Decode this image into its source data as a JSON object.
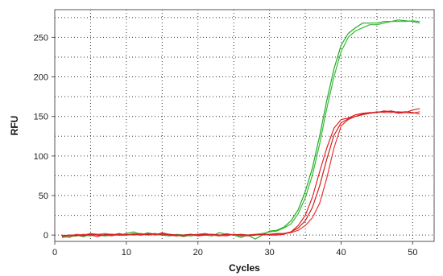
{
  "chart_data": {
    "type": "line",
    "title": "",
    "xlabel": "Cycles",
    "ylabel": "RFU",
    "xlim": [
      0,
      53
    ],
    "ylim": [
      -8,
      285
    ],
    "xticks": [
      0,
      10,
      20,
      30,
      40,
      50
    ],
    "yticks": [
      0,
      50,
      100,
      150,
      200,
      250
    ],
    "grid": true,
    "grid_style": "dotted",
    "legend": "none",
    "series": [
      {
        "color": "#22aa22",
        "points": [
          [
            1,
            -1
          ],
          [
            2,
            -3
          ],
          [
            3,
            0
          ],
          [
            4,
            -2
          ],
          [
            5,
            1
          ],
          [
            6,
            0
          ],
          [
            7,
            -1
          ],
          [
            8,
            0
          ],
          [
            9,
            0
          ],
          [
            10,
            2
          ],
          [
            11,
            4
          ],
          [
            12,
            1
          ],
          [
            13,
            2
          ],
          [
            14,
            0
          ],
          [
            15,
            1
          ],
          [
            16,
            -1
          ],
          [
            17,
            0
          ],
          [
            18,
            -2
          ],
          [
            19,
            0
          ],
          [
            20,
            1
          ],
          [
            21,
            0
          ],
          [
            22,
            -1
          ],
          [
            23,
            3
          ],
          [
            24,
            1
          ],
          [
            25,
            0
          ],
          [
            26,
            -3
          ],
          [
            27,
            0
          ],
          [
            28,
            -5
          ],
          [
            29,
            0
          ],
          [
            30,
            5
          ],
          [
            31,
            6
          ],
          [
            32,
            10
          ],
          [
            33,
            18
          ],
          [
            34,
            32
          ],
          [
            35,
            55
          ],
          [
            36,
            85
          ],
          [
            37,
            125
          ],
          [
            38,
            170
          ],
          [
            39,
            210
          ],
          [
            40,
            240
          ],
          [
            41,
            255
          ],
          [
            42,
            262
          ],
          [
            43,
            268
          ],
          [
            44,
            268
          ],
          [
            45,
            268
          ],
          [
            46,
            270
          ],
          [
            47,
            270
          ],
          [
            48,
            272
          ],
          [
            49,
            271
          ],
          [
            50,
            270
          ],
          [
            51,
            268
          ]
        ]
      },
      {
        "color": "#33bb33",
        "points": [
          [
            1,
            -3
          ],
          [
            2,
            -2
          ],
          [
            3,
            -1
          ],
          [
            4,
            0
          ],
          [
            5,
            -1
          ],
          [
            6,
            1
          ],
          [
            7,
            2
          ],
          [
            8,
            1
          ],
          [
            9,
            0
          ],
          [
            10,
            0
          ],
          [
            11,
            2
          ],
          [
            12,
            0
          ],
          [
            13,
            3
          ],
          [
            14,
            1
          ],
          [
            15,
            0
          ],
          [
            16,
            -1
          ],
          [
            17,
            1
          ],
          [
            18,
            0
          ],
          [
            19,
            -1
          ],
          [
            20,
            0
          ],
          [
            21,
            1
          ],
          [
            22,
            0
          ],
          [
            23,
            -1
          ],
          [
            24,
            2
          ],
          [
            25,
            0
          ],
          [
            26,
            -1
          ],
          [
            27,
            0
          ],
          [
            28,
            1
          ],
          [
            29,
            2
          ],
          [
            30,
            4
          ],
          [
            31,
            5
          ],
          [
            32,
            9
          ],
          [
            33,
            14
          ],
          [
            34,
            27
          ],
          [
            35,
            47
          ],
          [
            36,
            76
          ],
          [
            37,
            115
          ],
          [
            38,
            160
          ],
          [
            39,
            200
          ],
          [
            40,
            232
          ],
          [
            41,
            250
          ],
          [
            42,
            258
          ],
          [
            43,
            262
          ],
          [
            44,
            266
          ],
          [
            45,
            266
          ],
          [
            46,
            268
          ],
          [
            47,
            270
          ],
          [
            48,
            270
          ],
          [
            49,
            270
          ],
          [
            50,
            271
          ],
          [
            51,
            270
          ]
        ]
      },
      {
        "color": "#dd2222",
        "points": [
          [
            1,
            -2
          ],
          [
            2,
            0
          ],
          [
            3,
            -1
          ],
          [
            4,
            1
          ],
          [
            5,
            0
          ],
          [
            6,
            -2
          ],
          [
            7,
            1
          ],
          [
            8,
            0
          ],
          [
            9,
            2
          ],
          [
            10,
            0
          ],
          [
            11,
            1
          ],
          [
            12,
            2
          ],
          [
            13,
            0
          ],
          [
            14,
            1
          ],
          [
            15,
            2
          ],
          [
            16,
            0
          ],
          [
            17,
            -1
          ],
          [
            18,
            0
          ],
          [
            19,
            1
          ],
          [
            20,
            -1
          ],
          [
            21,
            0
          ],
          [
            22,
            1
          ],
          [
            23,
            0
          ],
          [
            24,
            -1
          ],
          [
            25,
            1
          ],
          [
            26,
            0
          ],
          [
            27,
            -1
          ],
          [
            28,
            0
          ],
          [
            29,
            1
          ],
          [
            30,
            0
          ],
          [
            31,
            0
          ],
          [
            32,
            1
          ],
          [
            33,
            4
          ],
          [
            34,
            12
          ],
          [
            35,
            25
          ],
          [
            36,
            48
          ],
          [
            37,
            80
          ],
          [
            38,
            110
          ],
          [
            39,
            135
          ],
          [
            40,
            146
          ],
          [
            41,
            148
          ],
          [
            42,
            152
          ],
          [
            43,
            154
          ],
          [
            44,
            155
          ],
          [
            45,
            155
          ],
          [
            46,
            157
          ],
          [
            47,
            156
          ],
          [
            48,
            154
          ],
          [
            49,
            155
          ],
          [
            50,
            158
          ],
          [
            51,
            160
          ]
        ]
      },
      {
        "color": "#ee3333",
        "points": [
          [
            1,
            0
          ],
          [
            2,
            -2
          ],
          [
            3,
            1
          ],
          [
            4,
            0
          ],
          [
            5,
            2
          ],
          [
            6,
            1
          ],
          [
            7,
            0
          ],
          [
            8,
            -1
          ],
          [
            9,
            1
          ],
          [
            10,
            1
          ],
          [
            11,
            0
          ],
          [
            12,
            1
          ],
          [
            13,
            2
          ],
          [
            14,
            0
          ],
          [
            15,
            3
          ],
          [
            16,
            1
          ],
          [
            17,
            0
          ],
          [
            18,
            -1
          ],
          [
            19,
            0
          ],
          [
            20,
            1
          ],
          [
            21,
            2
          ],
          [
            22,
            0
          ],
          [
            23,
            -1
          ],
          [
            24,
            0
          ],
          [
            25,
            1
          ],
          [
            26,
            -1
          ],
          [
            27,
            0
          ],
          [
            28,
            1
          ],
          [
            29,
            0
          ],
          [
            30,
            1
          ],
          [
            31,
            1
          ],
          [
            32,
            2
          ],
          [
            33,
            3
          ],
          [
            34,
            6
          ],
          [
            35,
            12
          ],
          [
            36,
            22
          ],
          [
            37,
            40
          ],
          [
            38,
            72
          ],
          [
            39,
            110
          ],
          [
            40,
            138
          ],
          [
            41,
            146
          ],
          [
            42,
            150
          ],
          [
            43,
            152
          ],
          [
            44,
            154
          ],
          [
            45,
            156
          ],
          [
            46,
            155
          ],
          [
            47,
            155
          ],
          [
            48,
            156
          ],
          [
            49,
            155
          ],
          [
            50,
            154
          ],
          [
            51,
            156
          ]
        ]
      },
      {
        "color": "#cc2020",
        "points": [
          [
            1,
            -1
          ],
          [
            2,
            0
          ],
          [
            3,
            0
          ],
          [
            4,
            -1
          ],
          [
            5,
            1
          ],
          [
            6,
            0
          ],
          [
            7,
            0
          ],
          [
            8,
            1
          ],
          [
            9,
            0
          ],
          [
            10,
            0
          ],
          [
            11,
            1
          ],
          [
            12,
            0
          ],
          [
            13,
            1
          ],
          [
            14,
            2
          ],
          [
            15,
            0
          ],
          [
            16,
            1
          ],
          [
            17,
            0
          ],
          [
            18,
            0
          ],
          [
            19,
            1
          ],
          [
            20,
            0
          ],
          [
            21,
            1
          ],
          [
            22,
            1
          ],
          [
            23,
            0
          ],
          [
            24,
            1
          ],
          [
            25,
            0
          ],
          [
            26,
            1
          ],
          [
            27,
            0
          ],
          [
            28,
            0
          ],
          [
            29,
            1
          ],
          [
            30,
            1
          ],
          [
            31,
            2
          ],
          [
            32,
            2
          ],
          [
            33,
            4
          ],
          [
            34,
            9
          ],
          [
            35,
            18
          ],
          [
            36,
            35
          ],
          [
            37,
            62
          ],
          [
            38,
            96
          ],
          [
            39,
            126
          ],
          [
            40,
            142
          ],
          [
            41,
            147
          ],
          [
            42,
            150
          ],
          [
            43,
            153
          ],
          [
            44,
            154
          ],
          [
            45,
            155
          ],
          [
            46,
            156
          ],
          [
            47,
            157
          ],
          [
            48,
            155
          ],
          [
            49,
            156
          ],
          [
            50,
            155
          ],
          [
            51,
            153
          ]
        ]
      }
    ]
  }
}
